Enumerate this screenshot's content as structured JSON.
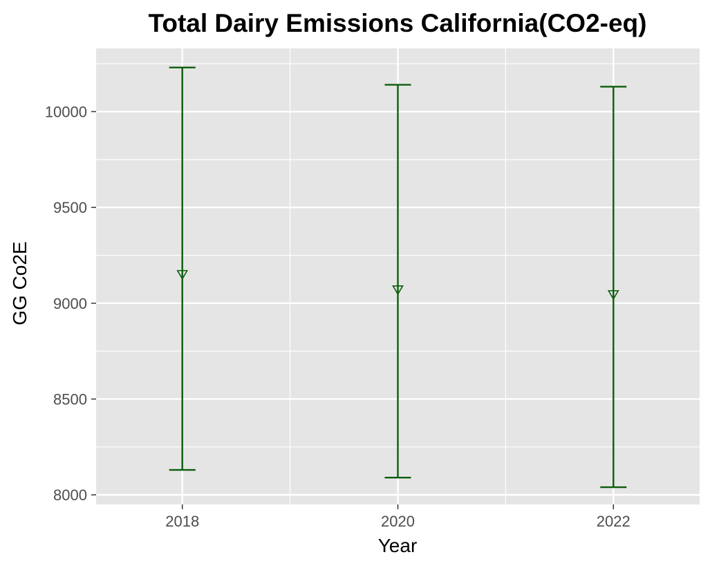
{
  "chart_data": {
    "type": "errorbar",
    "title": "Total Dairy Emissions California(CO2-eq)",
    "xlabel": "Year",
    "ylabel": "GG Co2E",
    "x": [
      2018,
      2020,
      2022
    ],
    "x_ticks": [
      "2018",
      "2020",
      "2022"
    ],
    "y_ticks": [
      "8000",
      "8500",
      "9000",
      "9500",
      "10000"
    ],
    "xlim": [
      2017.2,
      2022.8
    ],
    "ylim": [
      7950,
      10330
    ],
    "series": [
      {
        "center": [
          9150,
          9070,
          9045
        ],
        "lower": [
          8130,
          8090,
          8040
        ],
        "upper": [
          10230,
          10140,
          10130
        ],
        "marker": "triangle-down-open"
      }
    ],
    "grid": true,
    "legend": "none",
    "colors": {
      "series": "#0a5c0a",
      "panel_background": "#e5e5e5",
      "grid": "#ffffff",
      "tick_label": "#4d4d4d"
    }
  }
}
